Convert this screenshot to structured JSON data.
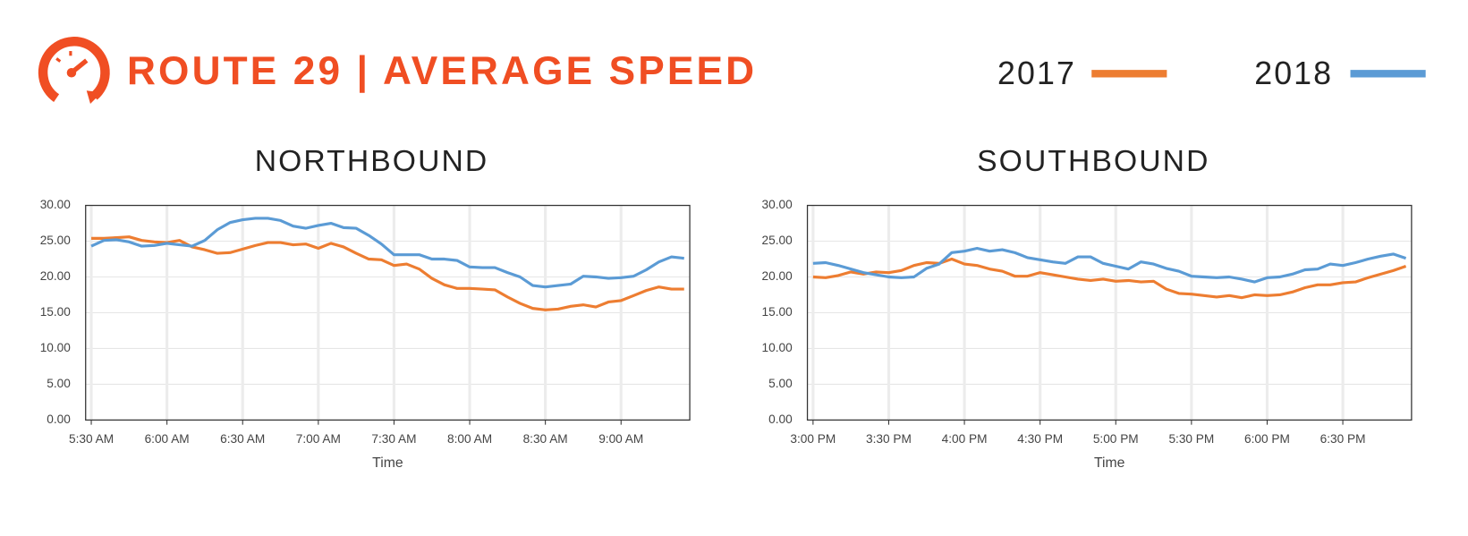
{
  "title": "ROUTE 29 | AVERAGE SPEED",
  "chart_data": [
    {
      "type": "line",
      "title": "NORTHBOUND",
      "x_label": "Time",
      "categories": [
        "5:30 AM",
        null,
        null,
        null,
        null,
        null,
        "6:00 AM",
        null,
        null,
        null,
        null,
        null,
        "6:30 AM",
        null,
        null,
        null,
        null,
        null,
        "7:00 AM",
        null,
        null,
        null,
        null,
        null,
        "7:30 AM",
        null,
        null,
        null,
        null,
        null,
        "8:00 AM",
        null,
        null,
        null,
        null,
        null,
        "8:30 AM",
        null,
        null,
        null,
        null,
        null,
        "9:00 AM",
        null,
        null,
        null,
        null,
        null
      ],
      "series": [
        {
          "name": "2017",
          "color": "#ed7d31",
          "values": [
            25.4,
            25.4,
            25.5,
            25.6,
            25.1,
            24.9,
            24.8,
            25.1,
            24.2,
            23.8,
            23.3,
            23.4,
            23.9,
            24.4,
            24.8,
            24.8,
            24.5,
            24.6,
            24.0,
            24.7,
            24.2,
            23.3,
            22.5,
            22.4,
            21.6,
            21.8,
            21.1,
            19.8,
            18.9,
            18.4,
            18.4,
            18.3,
            18.2,
            17.2,
            16.3,
            15.6,
            15.4,
            15.5,
            15.9,
            16.1,
            15.8,
            16.5,
            16.7,
            17.4,
            18.1,
            18.6,
            18.3,
            18.3
          ]
        },
        {
          "name": "2018",
          "color": "#5b9bd5",
          "values": [
            24.3,
            25.1,
            25.2,
            24.9,
            24.3,
            24.4,
            24.7,
            24.5,
            24.3,
            25.1,
            26.6,
            27.6,
            28.0,
            28.2,
            28.2,
            27.9,
            27.1,
            26.8,
            27.2,
            27.5,
            26.9,
            26.8,
            25.8,
            24.6,
            23.1,
            23.1,
            23.1,
            22.5,
            22.5,
            22.3,
            21.4,
            21.3,
            21.3,
            20.6,
            20.0,
            18.8,
            18.6,
            18.8,
            19.0,
            20.1,
            20.0,
            19.8,
            19.9,
            20.1,
            21.0,
            22.1,
            22.8,
            22.6
          ]
        }
      ],
      "ylim": [
        0,
        30
      ],
      "yticks": [
        {
          "value": 0,
          "label": "0.00"
        },
        {
          "value": 5,
          "label": "5.00"
        },
        {
          "value": 10,
          "label": "10.00"
        },
        {
          "value": 15,
          "label": "15.00"
        },
        {
          "value": 20,
          "label": "20.00"
        },
        {
          "value": 25,
          "label": "25.00"
        },
        {
          "value": 30,
          "label": "30.00"
        }
      ],
      "grid": true
    },
    {
      "type": "line",
      "title": "SOUTHBOUND",
      "x_label": "Time",
      "categories": [
        "3:00 PM",
        null,
        null,
        null,
        null,
        null,
        "3:30 PM",
        null,
        null,
        null,
        null,
        null,
        "4:00 PM",
        null,
        null,
        null,
        null,
        null,
        "4:30 PM",
        null,
        null,
        null,
        null,
        null,
        "5:00 PM",
        null,
        null,
        null,
        null,
        null,
        "5:30 PM",
        null,
        null,
        null,
        null,
        null,
        "6:00 PM",
        null,
        null,
        null,
        null,
        null,
        "6:30 PM",
        null,
        null,
        null,
        null,
        null
      ],
      "series": [
        {
          "name": "2017",
          "color": "#ed7d31",
          "values": [
            20.0,
            19.9,
            20.2,
            20.7,
            20.4,
            20.7,
            20.6,
            20.9,
            21.6,
            22.0,
            21.9,
            22.5,
            21.8,
            21.6,
            21.1,
            20.8,
            20.1,
            20.1,
            20.6,
            20.3,
            20.0,
            19.7,
            19.5,
            19.7,
            19.4,
            19.5,
            19.3,
            19.4,
            18.3,
            17.7,
            17.6,
            17.4,
            17.2,
            17.4,
            17.1,
            17.5,
            17.4,
            17.5,
            17.9,
            18.5,
            18.9,
            18.9,
            19.2,
            19.3,
            19.9,
            20.4,
            20.9,
            21.5
          ]
        },
        {
          "name": "2018",
          "color": "#5b9bd5",
          "values": [
            21.9,
            22.0,
            21.6,
            21.1,
            20.6,
            20.3,
            20.0,
            19.9,
            20.0,
            21.2,
            21.8,
            23.4,
            23.6,
            24.0,
            23.6,
            23.8,
            23.4,
            22.7,
            22.4,
            22.1,
            21.9,
            22.8,
            22.8,
            21.9,
            21.5,
            21.1,
            22.1,
            21.8,
            21.2,
            20.8,
            20.1,
            20.0,
            19.9,
            20.0,
            19.7,
            19.3,
            19.9,
            20.0,
            20.4,
            21.0,
            21.1,
            21.8,
            21.6,
            22.0,
            22.5,
            22.9,
            23.2,
            22.6
          ]
        }
      ],
      "ylim": [
        0,
        30
      ],
      "yticks": [
        {
          "value": 0,
          "label": "0.00"
        },
        {
          "value": 5,
          "label": "5.00"
        },
        {
          "value": 10,
          "label": "10.00"
        },
        {
          "value": 15,
          "label": "15.00"
        },
        {
          "value": 20,
          "label": "20.00"
        },
        {
          "value": 25,
          "label": "25.00"
        },
        {
          "value": 30,
          "label": "30.00"
        }
      ],
      "grid": true
    }
  ]
}
